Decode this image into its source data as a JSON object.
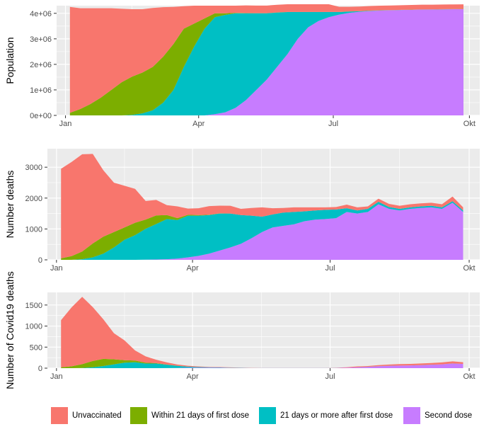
{
  "legend": {
    "items": [
      {
        "label": "Unvaccinated",
        "color": "#F8766D"
      },
      {
        "label": "Within 21 days of first dose",
        "color": "#7CAE00"
      },
      {
        "label": "21 days or more after first dose",
        "color": "#00BFC4"
      },
      {
        "label": "Second dose",
        "color": "#C77CFF"
      }
    ]
  },
  "chart_data": [
    {
      "type": "area",
      "stacked": true,
      "ylabel": "Population",
      "xlabel": "",
      "x_ticks": [
        "Jan",
        "Apr",
        "Jul",
        "Okt"
      ],
      "y_ticks": [
        "0e+00",
        "1e+06",
        "2e+06",
        "3e+06",
        "4e+06"
      ],
      "y_tick_values": [
        0,
        1000000,
        2000000,
        3000000,
        4000000
      ],
      "ylim": [
        0,
        4300000
      ],
      "x": [
        "2021-01-04",
        "2021-01-11",
        "2021-01-18",
        "2021-01-25",
        "2021-02-01",
        "2021-02-08",
        "2021-02-15",
        "2021-02-22",
        "2021-03-01",
        "2021-03-08",
        "2021-03-15",
        "2021-03-22",
        "2021-03-29",
        "2021-04-05",
        "2021-04-12",
        "2021-04-19",
        "2021-04-26",
        "2021-05-03",
        "2021-05-10",
        "2021-05-17",
        "2021-05-24",
        "2021-05-31",
        "2021-06-07",
        "2021-06-14",
        "2021-06-21",
        "2021-06-28",
        "2021-07-05",
        "2021-07-12",
        "2021-07-19",
        "2021-07-26",
        "2021-08-02",
        "2021-08-09",
        "2021-08-16",
        "2021-08-23",
        "2021-08-30",
        "2021-09-06",
        "2021-09-13",
        "2021-09-20",
        "2021-09-27"
      ],
      "grid": true,
      "series": [
        {
          "name": "Second dose",
          "values": [
            0,
            0,
            0,
            0,
            0,
            0,
            0,
            0,
            0,
            0,
            0,
            0,
            0,
            0,
            50000,
            120000,
            300000,
            600000,
            1000000,
            1400000,
            1900000,
            2400000,
            3000000,
            3450000,
            3700000,
            3850000,
            3950000,
            4020000,
            4060000,
            4090000,
            4110000,
            4120000,
            4130000,
            4140000,
            4150000,
            4150000,
            4155000,
            4160000,
            4160000
          ]
        },
        {
          "name": "21 days or more after first dose",
          "values": [
            0,
            0,
            0,
            0,
            0,
            0,
            20000,
            80000,
            200000,
            500000,
            1000000,
            1900000,
            2700000,
            3400000,
            3800000,
            3820000,
            3700000,
            3400000,
            3000000,
            2600000,
            2130000,
            1650000,
            1050000,
            600000,
            350000,
            200000,
            100000,
            50000,
            20000,
            10000,
            5000,
            3000,
            2000,
            2000,
            2000,
            3000,
            4000,
            5000,
            6000
          ]
        },
        {
          "name": "Within 21 days of first dose",
          "values": [
            100000,
            250000,
            450000,
            700000,
            1000000,
            1300000,
            1500000,
            1600000,
            1700000,
            1800000,
            1800000,
            1500000,
            900000,
            400000,
            150000,
            60000,
            20000,
            10000,
            5000,
            5000,
            5000,
            5000,
            5000,
            5000,
            5000,
            5000,
            5000,
            5000,
            5000,
            5000,
            5000,
            5000,
            5000,
            5000,
            5000,
            5000,
            5000,
            5000,
            5000
          ]
        },
        {
          "name": "Unvaccinated",
          "values": [
            4150000,
            3950000,
            3750000,
            3500000,
            3200000,
            2880000,
            2640000,
            2480000,
            2310000,
            1940000,
            1450000,
            880000,
            700000,
            500000,
            300000,
            300000,
            280000,
            300000,
            300000,
            300000,
            300000,
            300000,
            300000,
            300000,
            300000,
            300000,
            200000,
            180000,
            180000,
            180000,
            180000,
            180000,
            180000,
            180000,
            180000,
            180000,
            180000,
            180000,
            180000
          ]
        }
      ]
    },
    {
      "type": "area",
      "stacked": true,
      "ylabel": "Number deaths",
      "xlabel": "",
      "x_ticks": [
        "Jan",
        "Apr",
        "Jul",
        "Okt"
      ],
      "y_ticks": [
        "0",
        "1000",
        "2000",
        "3000"
      ],
      "y_tick_values": [
        0,
        1000,
        2000,
        3000
      ],
      "ylim": [
        0,
        3600
      ],
      "x": [
        "2021-01-04",
        "2021-01-11",
        "2021-01-18",
        "2021-01-25",
        "2021-02-01",
        "2021-02-08",
        "2021-02-15",
        "2021-02-22",
        "2021-03-01",
        "2021-03-08",
        "2021-03-15",
        "2021-03-22",
        "2021-03-29",
        "2021-04-05",
        "2021-04-12",
        "2021-04-19",
        "2021-04-26",
        "2021-05-03",
        "2021-05-10",
        "2021-05-17",
        "2021-05-24",
        "2021-05-31",
        "2021-06-07",
        "2021-06-14",
        "2021-06-21",
        "2021-06-28",
        "2021-07-05",
        "2021-07-12",
        "2021-07-19",
        "2021-07-26",
        "2021-08-02",
        "2021-08-09",
        "2021-08-16",
        "2021-08-23",
        "2021-08-30",
        "2021-09-06",
        "2021-09-13",
        "2021-09-20",
        "2021-09-27"
      ],
      "grid": true,
      "series": [
        {
          "name": "Second dose",
          "values": [
            0,
            0,
            0,
            0,
            0,
            0,
            0,
            0,
            5,
            10,
            20,
            40,
            80,
            130,
            200,
            300,
            400,
            520,
            700,
            900,
            1050,
            1100,
            1150,
            1250,
            1300,
            1320,
            1350,
            1550,
            1500,
            1550,
            1800,
            1650,
            1600,
            1650,
            1680,
            1700,
            1650,
            1850,
            1550
          ]
        },
        {
          "name": "21 days or more after first dose",
          "values": [
            0,
            0,
            20,
            80,
            200,
            400,
            650,
            800,
            1000,
            1150,
            1300,
            1250,
            1350,
            1300,
            1250,
            1200,
            1100,
            930,
            730,
            500,
            420,
            430,
            400,
            320,
            300,
            300,
            280,
            120,
            100,
            100,
            80,
            60,
            50,
            50,
            50,
            50,
            50,
            50,
            50
          ]
        },
        {
          "name": "Within 21 days of first dose",
          "values": [
            50,
            120,
            250,
            450,
            550,
            500,
            400,
            400,
            300,
            280,
            130,
            60,
            30,
            20,
            10,
            5,
            0,
            0,
            0,
            0,
            0,
            0,
            0,
            0,
            0,
            0,
            0,
            0,
            0,
            0,
            0,
            0,
            0,
            0,
            0,
            0,
            0,
            0,
            0
          ]
        },
        {
          "name": "Unvaccinated",
          "values": [
            2900,
            3050,
            3150,
            2900,
            2150,
            1600,
            1350,
            1100,
            600,
            500,
            320,
            380,
            200,
            220,
            280,
            250,
            250,
            200,
            250,
            300,
            200,
            150,
            150,
            130,
            100,
            80,
            80,
            120,
            100,
            80,
            100,
            100,
            100,
            100,
            100,
            100,
            100,
            150,
            100
          ]
        }
      ]
    },
    {
      "type": "area",
      "stacked": true,
      "ylabel": "Number of Covid19 deaths",
      "xlabel": "",
      "x_ticks": [
        "Jan",
        "Apr",
        "Jul",
        "Okt"
      ],
      "y_ticks": [
        "0",
        "500",
        "1000",
        "1500"
      ],
      "y_tick_values": [
        0,
        500,
        1000,
        1500
      ],
      "ylim": [
        0,
        1800
      ],
      "x": [
        "2021-01-04",
        "2021-01-11",
        "2021-01-18",
        "2021-01-25",
        "2021-02-01",
        "2021-02-08",
        "2021-02-15",
        "2021-02-22",
        "2021-03-01",
        "2021-03-08",
        "2021-03-15",
        "2021-03-22",
        "2021-03-29",
        "2021-04-05",
        "2021-04-12",
        "2021-04-19",
        "2021-04-26",
        "2021-05-03",
        "2021-05-10",
        "2021-05-17",
        "2021-05-24",
        "2021-05-31",
        "2021-06-07",
        "2021-06-14",
        "2021-06-21",
        "2021-06-28",
        "2021-07-05",
        "2021-07-12",
        "2021-07-19",
        "2021-07-26",
        "2021-08-02",
        "2021-08-09",
        "2021-08-16",
        "2021-08-23",
        "2021-08-30",
        "2021-09-06",
        "2021-09-13",
        "2021-09-20",
        "2021-09-27"
      ],
      "grid": true,
      "series": [
        {
          "name": "Second dose",
          "values": [
            0,
            0,
            0,
            0,
            0,
            0,
            0,
            0,
            0,
            0,
            2,
            5,
            10,
            10,
            10,
            8,
            5,
            5,
            3,
            3,
            3,
            3,
            3,
            3,
            3,
            3,
            5,
            10,
            20,
            30,
            45,
            55,
            60,
            65,
            70,
            80,
            90,
            110,
            100
          ]
        },
        {
          "name": "21 days or more after first dose",
          "values": [
            0,
            0,
            5,
            20,
            50,
            90,
            130,
            140,
            110,
            110,
            80,
            50,
            25,
            15,
            10,
            8,
            5,
            3,
            2,
            1,
            1,
            1,
            1,
            1,
            1,
            1,
            1,
            1,
            1,
            1,
            1,
            1,
            1,
            1,
            1,
            1,
            1,
            1,
            1
          ]
        },
        {
          "name": "Within 21 days of first dose",
          "values": [
            20,
            45,
            90,
            150,
            170,
            120,
            60,
            40,
            20,
            10,
            5,
            2,
            1,
            0,
            0,
            0,
            0,
            0,
            0,
            0,
            0,
            0,
            0,
            0,
            0,
            0,
            0,
            0,
            0,
            0,
            0,
            0,
            0,
            0,
            0,
            0,
            0,
            0,
            0
          ]
        },
        {
          "name": "Unvaccinated",
          "values": [
            1120,
            1400,
            1600,
            1280,
            940,
            620,
            470,
            240,
            150,
            80,
            50,
            30,
            20,
            15,
            10,
            10,
            8,
            5,
            4,
            3,
            3,
            3,
            3,
            3,
            3,
            3,
            5,
            10,
            20,
            20,
            25,
            30,
            35,
            35,
            40,
            40,
            45,
            50,
            40
          ]
        }
      ]
    }
  ]
}
